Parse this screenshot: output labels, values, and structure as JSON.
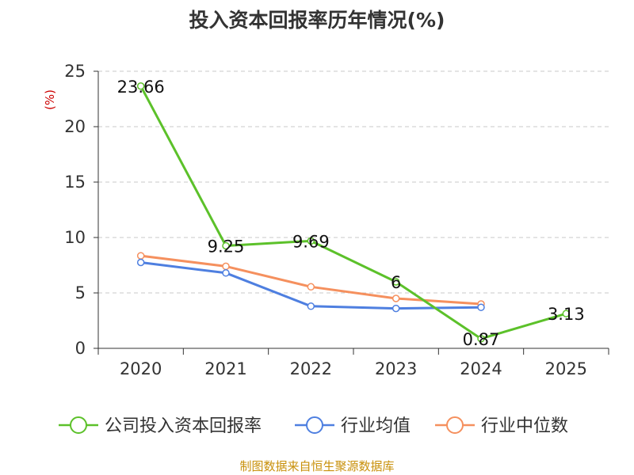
{
  "chart_data": {
    "type": "line",
    "title": "投入资本回报率历年情况(%)",
    "ylabel": "(%)",
    "xlabel": "",
    "categories": [
      "2020",
      "2021",
      "2022",
      "2023",
      "2024",
      "2025"
    ],
    "ylim": [
      0,
      25
    ],
    "yticks": [
      0,
      5,
      10,
      15,
      20,
      25
    ],
    "grid": "horizontal-dashed",
    "legend_position": "bottom",
    "series": [
      {
        "name": "公司投入资本回报率",
        "color": "#5cc12a",
        "values": [
          23.66,
          9.25,
          9.69,
          6,
          0.87,
          3.13
        ],
        "labels": [
          "23.66",
          "9.25",
          "9.69",
          "6",
          "0.87",
          "3.13"
        ]
      },
      {
        "name": "行业均值",
        "color": "#4e7fe0",
        "values": [
          7.75,
          6.8,
          3.8,
          3.6,
          3.7,
          null
        ]
      },
      {
        "name": "行业中位数",
        "color": "#f5905e",
        "values": [
          8.35,
          7.4,
          5.55,
          4.5,
          4.0,
          null
        ]
      }
    ]
  },
  "source": "制图数据来自恒生聚源数据库"
}
